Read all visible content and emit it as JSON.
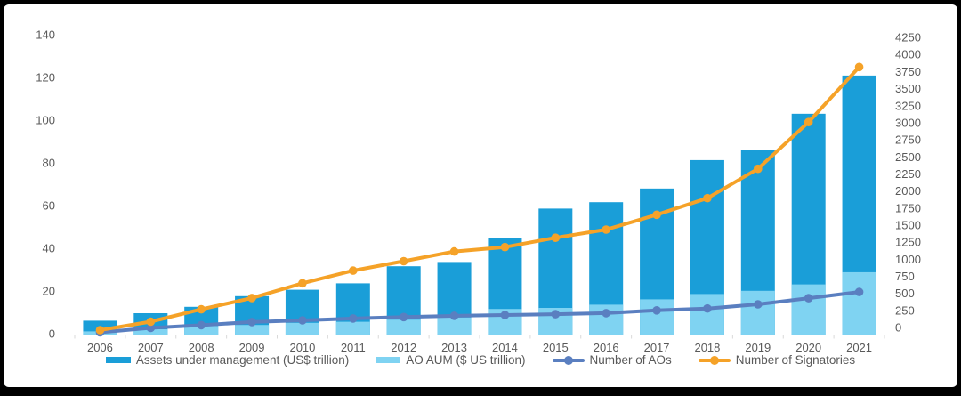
{
  "figure": {
    "frame_color": "#000000",
    "background": "#ffffff",
    "text_color": "#595959",
    "axis_line_color": "#d9d9d9"
  },
  "chart_data": {
    "type": "bar",
    "subtype": "bar-line-combo-dual-axis",
    "title": "",
    "xlabel": "",
    "ylabel_left": "",
    "ylabel_right": "",
    "grid": false,
    "legend_position": "bottom",
    "categories": [
      "2006",
      "2007",
      "2008",
      "2009",
      "2010",
      "2011",
      "2012",
      "2013",
      "2014",
      "2015",
      "2016",
      "2017",
      "2018",
      "2019",
      "2020",
      "2021"
    ],
    "series": [
      {
        "name": "Assets under management (US$ trillion)",
        "type": "bar",
        "axis": "left",
        "color": "#1a9ed8",
        "values": [
          6.5,
          10,
          13,
          18,
          21,
          24,
          32,
          34,
          45,
          59,
          62,
          68.4,
          81.7,
          86.3,
          103.4,
          121.3
        ]
      },
      {
        "name": "AO AUM ($ US trillion)",
        "type": "bar",
        "axis": "left",
        "color": "#7fd3f2",
        "values": [
          1.5,
          2.5,
          4,
          4.5,
          5.5,
          6,
          7,
          8,
          12,
          12.5,
          14,
          16.5,
          19,
          20.5,
          23.5,
          29.2
        ]
      },
      {
        "name": "Number of AOs",
        "type": "line",
        "axis": "right",
        "color": "#5a7fc0",
        "values": [
          32,
          95,
          135,
          180,
          203,
          230,
          251,
          268,
          280,
          291,
          307,
          346,
          373,
          432,
          521,
          609
        ]
      },
      {
        "name": "Number of Signatories",
        "type": "line",
        "axis": "right",
        "color": "#f5a228",
        "values": [
          63,
          185,
          361,
          523,
          734,
          915,
          1050,
          1188,
          1251,
          1384,
          1501,
          1714,
          1951,
          2370,
          3038,
          3826
        ]
      }
    ],
    "left_axis": {
      "min": 0,
      "max": 140,
      "step": 20,
      "ticks": [
        0,
        20,
        40,
        60,
        80,
        100,
        120,
        140
      ]
    },
    "right_axis": {
      "min": 0,
      "max": 4250,
      "step": 250,
      "ticks": [
        0,
        250,
        500,
        750,
        1000,
        1250,
        1500,
        1750,
        2000,
        2250,
        2500,
        2750,
        3000,
        3250,
        3500,
        3750,
        4000,
        4250
      ]
    }
  }
}
